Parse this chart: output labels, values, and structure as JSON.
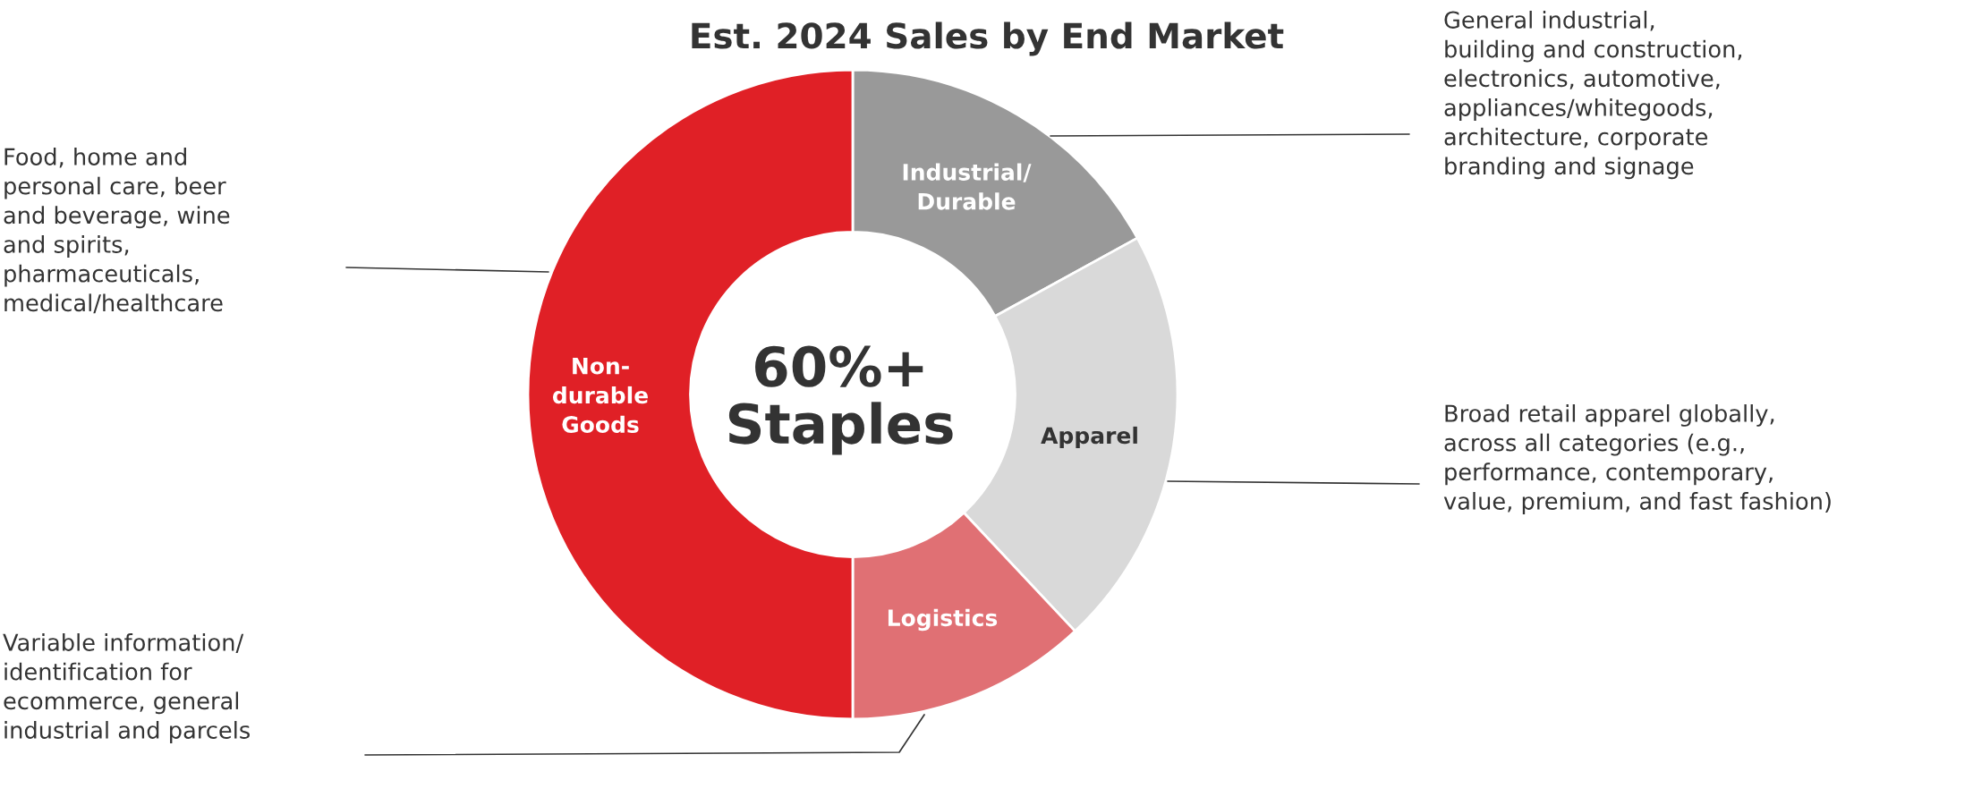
{
  "chart_data": {
    "type": "donut",
    "title": "Est. 2024 Sales by End Market",
    "categories": [
      "Industrial/\nDurable",
      "Apparel",
      "Logistics",
      "Non-\ndurable\nGoods"
    ],
    "values": [
      17,
      21,
      12,
      50
    ],
    "colors": [
      "#999999",
      "#d9d9d9",
      "#e07074",
      "#e02026"
    ],
    "annotations": [
      "60%+\nStaples",
      "General industrial,\nbuilding and construction,\nelectronics, automotive,\nappliances/whitegoods,\narchitecture, corporate\nbranding and signage",
      "Broad retail apparel globally,\nacross all categories (e.g.,\nperformance, contemporary,\nvalue, premium, and fast fashion)",
      "Variable information/\nidentification for\necommerce, general\nindustrial and parcels",
      "Food, home and\npersonal care, beer\nand beverage, wine\nand spirits,\npharmaceuticals,\nmedical/healthcare"
    ],
    "legend": false
  }
}
